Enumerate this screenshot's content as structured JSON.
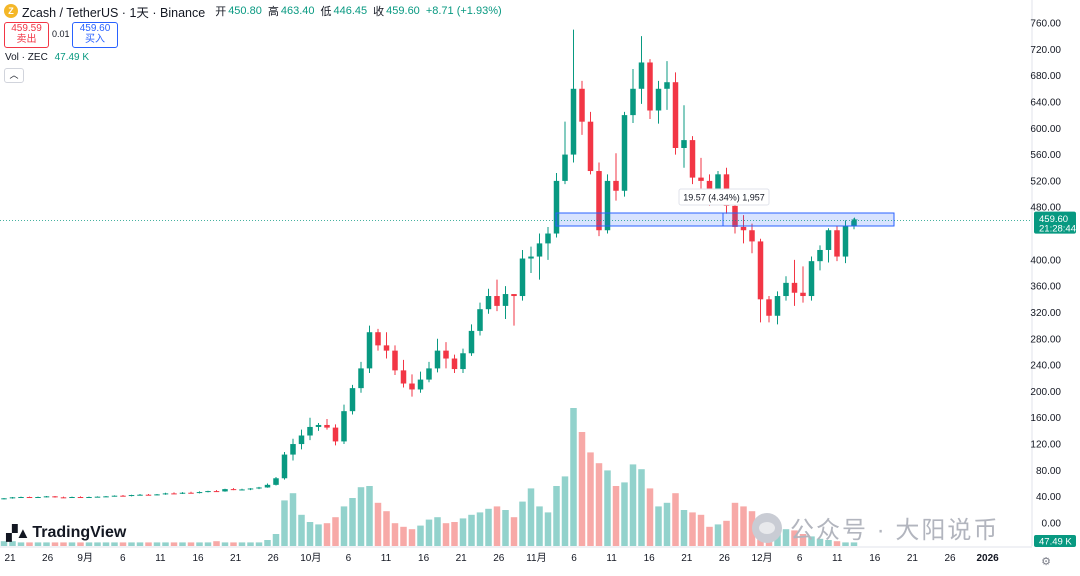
{
  "header": {
    "title": "Zcash / TetherUS · 1天 · Binance",
    "ohlc": [
      {
        "label": "开",
        "value": "450.80"
      },
      {
        "label": "高",
        "value": "463.40"
      },
      {
        "label": "低",
        "value": "446.45"
      },
      {
        "label": "收",
        "value": "459.60"
      },
      {
        "label": "",
        "value": "+8.71 (+1.93%)"
      }
    ]
  },
  "trade": {
    "sell_price": "459.59",
    "sell_label": "卖出",
    "buy_price": "459.60",
    "buy_label": "买入",
    "spread": "0.01"
  },
  "volume_indicator": {
    "label": "Vol · ZEC",
    "value": "47.49 K"
  },
  "price_axis": {
    "ticks": [
      "760.00",
      "720.00",
      "680.00",
      "640.00",
      "600.00",
      "560.00",
      "520.00",
      "480.00",
      "400.00",
      "360.00",
      "320.00",
      "280.00",
      "240.00",
      "200.00",
      "160.00",
      "120.00",
      "80.00",
      "40.00",
      "0.00"
    ],
    "last_price_label": "459.60",
    "countdown_label": "21:28:44",
    "volume_label": "47.49 K"
  },
  "time_axis": {
    "labels": [
      "21",
      "26",
      "9月",
      "6",
      "11",
      "16",
      "21",
      "26",
      "10月",
      "6",
      "11",
      "16",
      "21",
      "26",
      "11月",
      "6",
      "11",
      "16",
      "21",
      "26",
      "12月",
      "6",
      "11",
      "16",
      "21",
      "26",
      "2026"
    ]
  },
  "measure_label": "19.57 (4.34%) 1,957",
  "logo": {
    "text": "TradingView"
  },
  "watermark": {
    "text": "公众号 · 大阳说币"
  },
  "colors": {
    "up": "#089981",
    "down": "#f23645",
    "up_volume": "#92d2cc",
    "down_volume": "#f7a9a7",
    "highlight": "#2962ff"
  },
  "chart_data": {
    "type": "candlestick",
    "symbol": "ZECUSDT",
    "interval": "1D",
    "ylim": [
      0,
      760
    ],
    "series": [
      {
        "name": "Zcash / TetherUS",
        "candles": [
          [
            37.0,
            38.0,
            36.0,
            37.5
          ],
          [
            37.5,
            39.5,
            37.0,
            39.0
          ],
          [
            39.0,
            40.0,
            38.0,
            39.5
          ],
          [
            39.5,
            40.0,
            38.5,
            38.8
          ],
          [
            38.8,
            40.0,
            38.0,
            39.5
          ],
          [
            39.5,
            41.0,
            39.0,
            40.5
          ],
          [
            40.5,
            41.0,
            38.5,
            39.0
          ],
          [
            39.0,
            40.0,
            38.0,
            38.5
          ],
          [
            38.5,
            40.0,
            38.0,
            39.5
          ],
          [
            39.5,
            40.5,
            38.5,
            39.0
          ],
          [
            39.0,
            40.0,
            38.5,
            39.5
          ],
          [
            39.5,
            40.5,
            39.0,
            40.0
          ],
          [
            40.0,
            41.0,
            39.5,
            40.5
          ],
          [
            40.5,
            42.0,
            40.0,
            41.5
          ],
          [
            41.5,
            42.5,
            40.5,
            41.0
          ],
          [
            41.0,
            43.0,
            40.5,
            42.5
          ],
          [
            42.5,
            44.0,
            42.0,
            43.0
          ],
          [
            43.0,
            44.0,
            42.0,
            42.5
          ],
          [
            42.5,
            44.0,
            42.0,
            43.5
          ],
          [
            43.5,
            46.0,
            43.0,
            45.0
          ],
          [
            45.0,
            46.5,
            44.0,
            44.5
          ],
          [
            44.5,
            47.0,
            44.0,
            46.0
          ],
          [
            46.0,
            47.5,
            45.0,
            45.5
          ],
          [
            45.5,
            48.0,
            45.0,
            47.0
          ],
          [
            47.0,
            49.0,
            46.5,
            48.5
          ],
          [
            48.5,
            50.0,
            47.5,
            48.0
          ],
          [
            48.0,
            52.0,
            47.5,
            51.5
          ],
          [
            51.5,
            53.0,
            50.0,
            50.5
          ],
          [
            50.5,
            52.0,
            49.5,
            51.0
          ],
          [
            51.0,
            53.0,
            50.0,
            52.5
          ],
          [
            52.5,
            55.0,
            51.5,
            54.0
          ],
          [
            54.0,
            60.0,
            53.5,
            58.0
          ],
          [
            58.0,
            70.0,
            57.0,
            68.0
          ],
          [
            68.0,
            108.0,
            66.0,
            104.0
          ],
          [
            104.0,
            128.0,
            95.0,
            120.0
          ],
          [
            120.0,
            142.0,
            112.0,
            133.0
          ],
          [
            133.0,
            160.0,
            126.0,
            146.0
          ],
          [
            146.0,
            152.0,
            140.0,
            149.0
          ],
          [
            149.0,
            158.0,
            142.0,
            145.0
          ],
          [
            145.0,
            150.0,
            118.0,
            124.0
          ],
          [
            124.0,
            180.0,
            120.0,
            170.0
          ],
          [
            170.0,
            210.0,
            165.0,
            205.0
          ],
          [
            205.0,
            245.0,
            198.0,
            235.0
          ],
          [
            235.0,
            300.0,
            228.0,
            290.0
          ],
          [
            290.0,
            295.0,
            262.0,
            270.0
          ],
          [
            270.0,
            290.0,
            250.0,
            262.0
          ],
          [
            262.0,
            270.0,
            225.0,
            232.0
          ],
          [
            232.0,
            248.0,
            206.0,
            212.0
          ],
          [
            212.0,
            226.0,
            192.0,
            203.0
          ],
          [
            203.0,
            230.0,
            198.0,
            218.0
          ],
          [
            218.0,
            245.0,
            214.0,
            235.0
          ],
          [
            235.0,
            280.0,
            229.0,
            262.0
          ],
          [
            262.0,
            275.0,
            235.0,
            250.0
          ],
          [
            250.0,
            256.0,
            228.0,
            234.0
          ],
          [
            234.0,
            265.0,
            228.0,
            258.0
          ],
          [
            258.0,
            302.0,
            254.0,
            292.0
          ],
          [
            292.0,
            335.0,
            285.0,
            325.0
          ],
          [
            325.0,
            356.0,
            318.0,
            345.0
          ],
          [
            345.0,
            370.0,
            322.0,
            330.0
          ],
          [
            330.0,
            360.0,
            310.0,
            348.0
          ],
          [
            348.0,
            345.0,
            300.0,
            345.0
          ],
          [
            345.0,
            415.0,
            338.0,
            402.0
          ],
          [
            402.0,
            420.0,
            380.0,
            405.0
          ],
          [
            405.0,
            440.0,
            370.0,
            425.0
          ],
          [
            425.0,
            450.0,
            400.0,
            440.0
          ],
          [
            440.0,
            532.0,
            434.0,
            520.0
          ],
          [
            520.0,
            610.0,
            515.0,
            560.0
          ],
          [
            560.0,
            750.0,
            548.0,
            660.0
          ],
          [
            660.0,
            672.0,
            590.0,
            610.0
          ],
          [
            610.0,
            625.0,
            530.0,
            535.0
          ],
          [
            535.0,
            548.0,
            436.0,
            445.0
          ],
          [
            445.0,
            530.0,
            440.0,
            520.0
          ],
          [
            520.0,
            562.0,
            490.0,
            505.0
          ],
          [
            505.0,
            625.0,
            496.0,
            620.0
          ],
          [
            620.0,
            690.0,
            608.0,
            660.0
          ],
          [
            660.0,
            740.0,
            637.0,
            700.0
          ],
          [
            700.0,
            705.0,
            614.0,
            627.0
          ],
          [
            627.0,
            672.0,
            607.0,
            660.0
          ],
          [
            660.0,
            702.0,
            628.0,
            670.0
          ],
          [
            670.0,
            685.0,
            560.0,
            570.0
          ],
          [
            570.0,
            635.0,
            540.0,
            582.0
          ],
          [
            582.0,
            588.0,
            515.0,
            525.0
          ],
          [
            525.0,
            555.0,
            500.0,
            520.0
          ],
          [
            520.0,
            530.0,
            482.0,
            490.0
          ],
          [
            490.0,
            535.0,
            485.0,
            530.0
          ],
          [
            530.0,
            540.0,
            470.0,
            482.0
          ],
          [
            482.0,
            488.0,
            440.0,
            450.0
          ],
          [
            450.0,
            468.0,
            425.0,
            445.0
          ],
          [
            445.0,
            455.0,
            410.0,
            428.0
          ],
          [
            428.0,
            432.0,
            305.0,
            340.0
          ],
          [
            340.0,
            345.0,
            305.0,
            315.0
          ],
          [
            315.0,
            352.0,
            302.0,
            345.0
          ],
          [
            345.0,
            375.0,
            338.0,
            365.0
          ],
          [
            365.0,
            400.0,
            330.0,
            350.0
          ],
          [
            350.0,
            390.0,
            335.0,
            345.0
          ],
          [
            345.0,
            405.0,
            338.0,
            398.0
          ],
          [
            398.0,
            422.0,
            384.0,
            415.0
          ],
          [
            415.0,
            448.0,
            396.0,
            445.0
          ],
          [
            445.0,
            451.0,
            398.0,
            405.0
          ],
          [
            405.0,
            460.0,
            395.0,
            450.8
          ],
          [
            450.8,
            463.4,
            446.45,
            459.6
          ]
        ]
      }
    ],
    "volume": [
      4,
      4,
      3,
      3,
      3,
      3,
      3,
      3,
      3,
      3,
      3,
      3,
      3,
      3,
      3,
      3,
      3,
      3,
      3,
      3,
      3,
      3,
      3,
      3,
      3,
      4,
      3,
      3,
      3,
      3,
      3,
      5,
      10,
      38,
      44,
      26,
      20,
      18,
      19,
      24,
      33,
      40,
      49,
      50,
      36,
      29,
      19,
      16,
      14,
      17,
      22,
      24,
      19,
      20,
      23,
      26,
      28,
      31,
      33,
      30,
      24,
      37,
      48,
      33,
      28,
      50,
      58,
      115,
      95,
      78,
      69,
      63,
      50,
      53,
      68,
      64,
      48,
      33,
      36,
      44,
      30,
      28,
      26,
      16,
      18,
      21,
      36,
      33,
      29,
      23,
      17,
      15,
      14,
      13,
      10,
      8,
      6,
      5,
      4,
      3,
      3
    ]
  }
}
